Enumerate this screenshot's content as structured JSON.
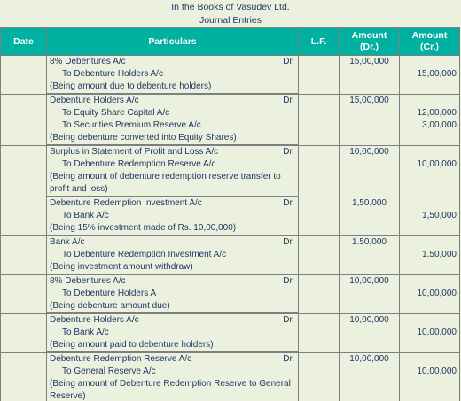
{
  "header": {
    "title": "In the Books of Vasudev Ltd.",
    "subtitle": "Journal Entries"
  },
  "columns": {
    "date": "Date",
    "particulars": "Particulars",
    "lf": "L.F.",
    "amount_dr_1": "Amount",
    "amount_dr_2": "(Dr.)",
    "amount_cr_1": "Amount",
    "amount_cr_2": "(Cr.)"
  },
  "entries": [
    {
      "debit": "8% Debentures A/c",
      "dr": "Dr.",
      "debit_amt": "15,00,000",
      "credits": [
        {
          "account": "To Debenture Holders A/c",
          "amt": "15,00,000"
        }
      ],
      "narration": "(Being amount due to debenture holders)"
    },
    {
      "debit": "Debenture Holders A/c",
      "dr": "Dr.",
      "debit_amt": "15,00,000",
      "credits": [
        {
          "account": "To Equity Share Capital A/c",
          "amt": "12,00,000"
        },
        {
          "account": "To Securities Premium Reserve A/c",
          "amt": "3,00,000"
        }
      ],
      "narration": "(Being debenture converted into Equity Shares)"
    },
    {
      "debit": "Surplus in Statement of Profit and Loss A/c",
      "dr": "Dr.",
      "debit_amt": "10,00,000",
      "credits": [
        {
          "account": "To Debenture Redemption Reserve A/c",
          "amt": "10,00,000"
        }
      ],
      "narration": "(Being amount of debenture redemption reserve transfer to profit and loss)"
    },
    {
      "debit": "Debenture Redemption Investment A/c",
      "dr": "Dr.",
      "debit_amt": "1,50,000",
      "credits": [
        {
          "account": "To Bank A/c",
          "amt": "1,50,000"
        }
      ],
      "narration": "(Being 15% investment made of Rs. 10,00,000)"
    },
    {
      "debit": "Bank A/c",
      "dr": "Dr.",
      "debit_amt": "1.50,000",
      "credits": [
        {
          "account": "To Debenture Redemption Investment A/c",
          "amt": "1.50,000"
        }
      ],
      "narration": "(Being investment amount withdraw)"
    },
    {
      "debit": "8% Debentures A/c",
      "dr": "Dr.",
      "debit_amt": "10,00,000",
      "credits": [
        {
          "account": "To Debenture Holders A",
          "amt": "10,00,000"
        }
      ],
      "narration": "(Being debenture amount due)"
    },
    {
      "debit": "Debenture Holders A/c",
      "dr": "Dr.",
      "debit_amt": "10,00,000",
      "credits": [
        {
          "account": "To Bank A/c",
          "amt": "10,00,000"
        }
      ],
      "narration": "(Being amount paid to debenture holders)"
    },
    {
      "debit": "Debenture Redemption Reserve A/c",
      "dr": "Dr.",
      "debit_amt": "10,00,000",
      "credits": [
        {
          "account": "To General Reserve A/c",
          "amt": "10,00,000"
        }
      ],
      "narration": "(Being amount of Debenture Redemption Reserve to General Reserve)"
    }
  ]
}
